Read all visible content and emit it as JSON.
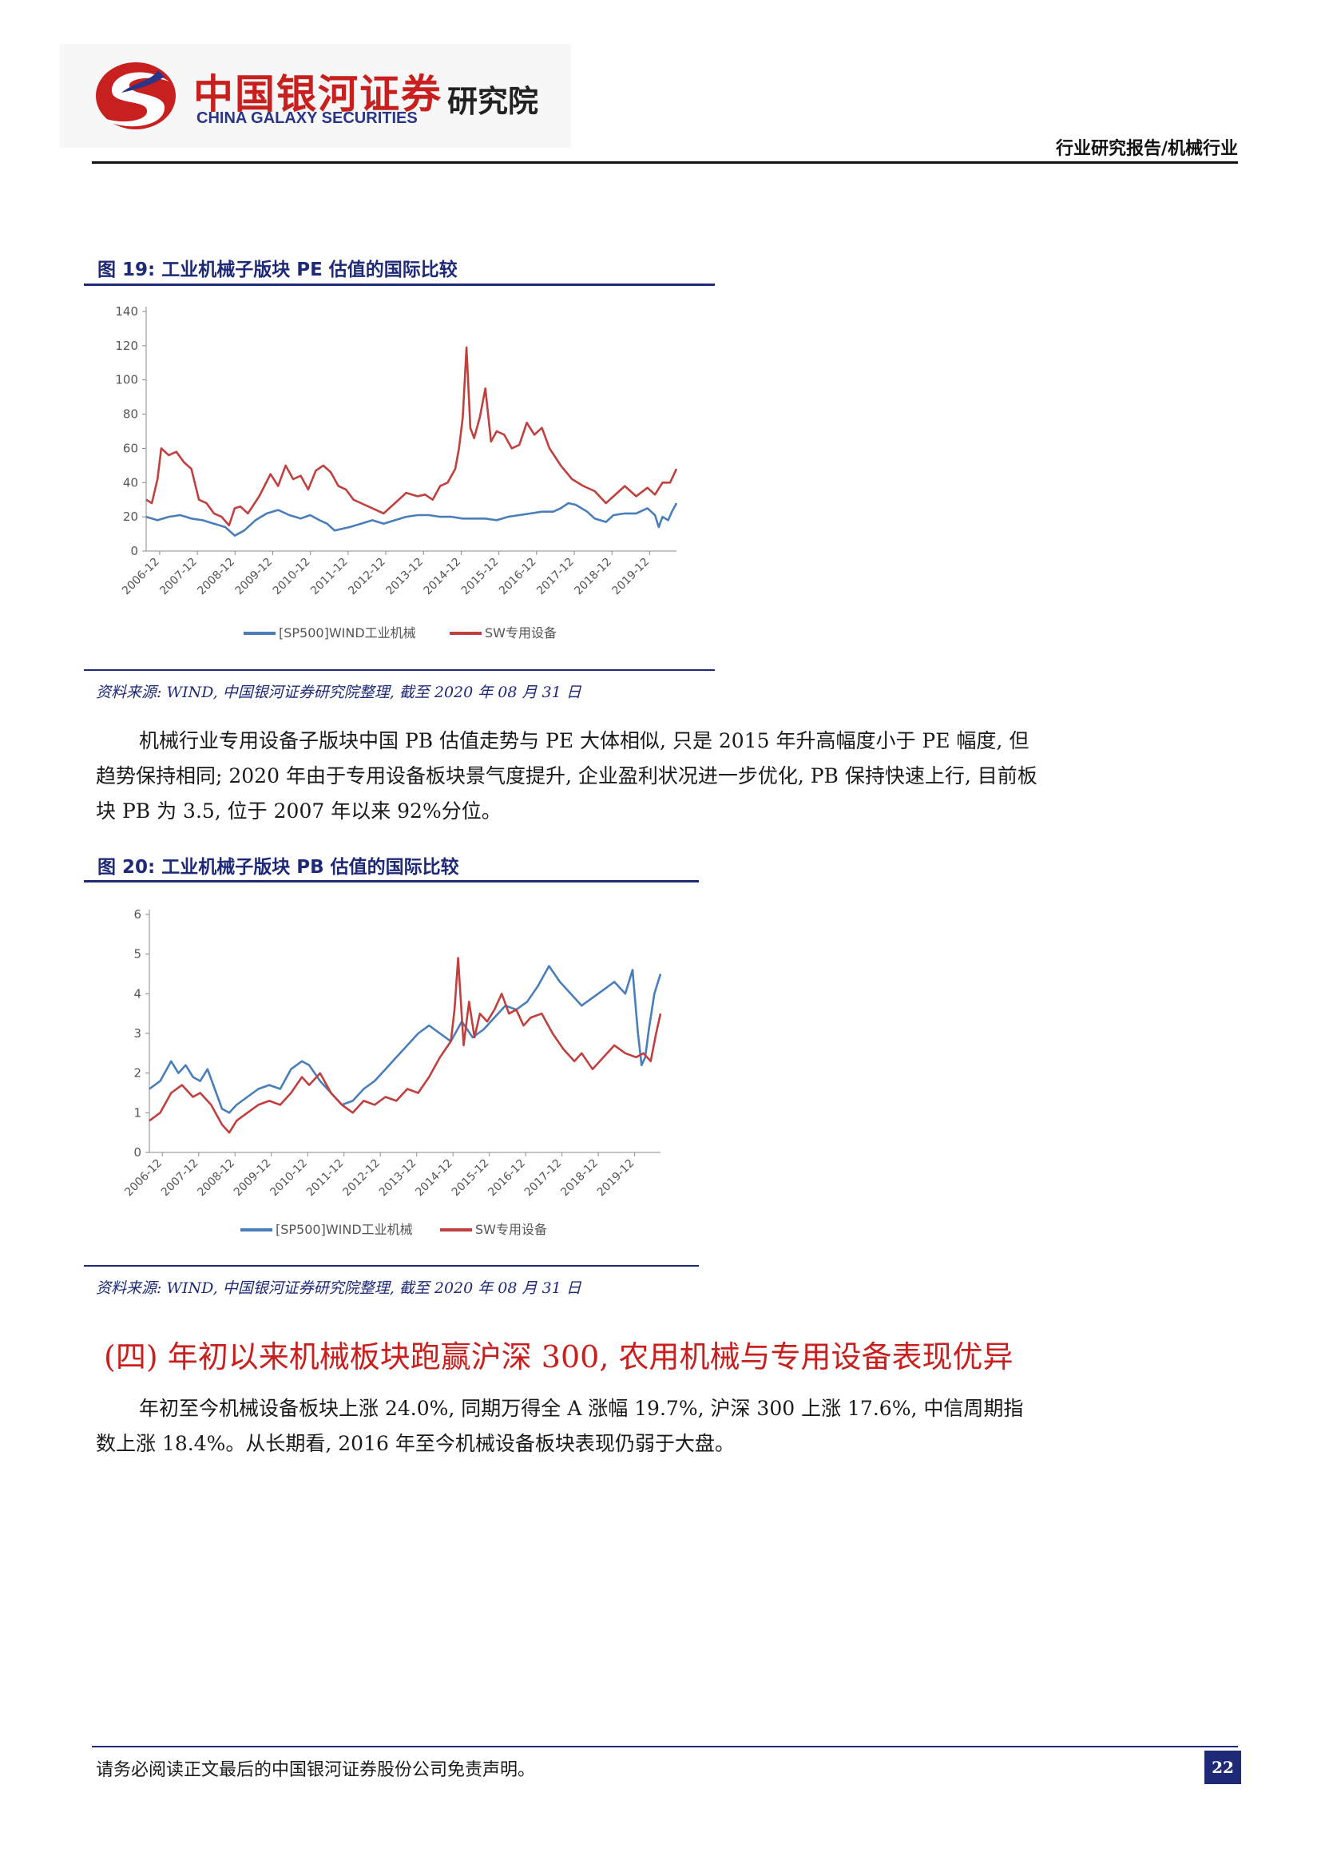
{
  "header": {
    "brand_cn": "中国银河证券",
    "brand_en": "CHINA GALAXY SECURITIES",
    "brand_dept": "研究院",
    "report_type": "行业研究报告/机械行业"
  },
  "figure19": {
    "title": "图 19:  工业机械子版块 PE 估值的国际比较",
    "source": "资料来源: WIND, 中国银河证券研究院整理, 截至 2020 年 08 月 31 日"
  },
  "paragraph1": "机械行业专用设备子版块中国 PB 估值走势与 PE 大体相似, 只是 2015 年升高幅度小于 PE 幅度, 但趋势保持相同; 2020 年由于专用设备板块景气度提升, 企业盈利状况进一步优化, PB 保持快速上行, 目前板块 PB 为 3.5, 位于 2007 年以来 92%分位。",
  "figure20": {
    "title": "图 20:  工业机械子版块 PB 估值的国际比较",
    "source": "资料来源: WIND, 中国银河证券研究院整理, 截至 2020 年 08 月 31 日"
  },
  "section_heading": "(四) 年初以来机械板块跑赢沪深 300, 农用机械与专用设备表现优异",
  "paragraph2": "年初至今机械设备板块上涨 24.0%, 同期万得全 A 涨幅 19.7%, 沪深 300 上涨 17.6%, 中信周期指数上涨 18.4%。从长期看, 2016 年至今机械设备板块表现仍弱于大盘。",
  "footer": {
    "disclaimer": "请务必阅读正文最后的中国银河证券股份公司免责声明。",
    "page_number": "22"
  },
  "colors": {
    "brand_red": "#c8201e",
    "brand_navy": "#1e2a78",
    "series_blue": "#4a7ebb",
    "series_red": "#c0403f"
  },
  "chart_data": [
    {
      "type": "line",
      "categories": [
        "2006-12",
        "2007-12",
        "2008-12",
        "2009-12",
        "2010-12",
        "2011-12",
        "2012-12",
        "2013-12",
        "2014-12",
        "2015-12",
        "2016-12",
        "2017-12",
        "2018-12",
        "2019-12"
      ],
      "ylim": [
        0,
        140
      ],
      "yticks": [
        0,
        20,
        40,
        60,
        80,
        100,
        120,
        140
      ],
      "x_start": 2006.6,
      "x_end": 2020.67,
      "series": [
        {
          "name": "[SP500]WIND工业机械",
          "color": "#4a7ebb",
          "x": [
            2006.6,
            2006.9,
            2007.2,
            2007.5,
            2007.8,
            2008.1,
            2008.4,
            2008.7,
            2008.95,
            2009.2,
            2009.5,
            2009.8,
            2010.1,
            2010.4,
            2010.7,
            2010.95,
            2011.2,
            2011.4,
            2011.6,
            2011.8,
            2012.0,
            2012.3,
            2012.6,
            2012.9,
            2013.2,
            2013.5,
            2013.8,
            2014.1,
            2014.4,
            2014.7,
            2015.0,
            2015.3,
            2015.6,
            2015.9,
            2016.2,
            2016.5,
            2016.8,
            2017.1,
            2017.4,
            2017.6,
            2017.8,
            2018.0,
            2018.3,
            2018.5,
            2018.8,
            2019.0,
            2019.3,
            2019.6,
            2019.9,
            2020.1,
            2020.2,
            2020.3,
            2020.45,
            2020.55,
            2020.67
          ],
          "y": [
            20,
            18,
            20,
            21,
            19,
            18,
            16,
            14,
            9,
            12,
            18,
            22,
            24,
            21,
            19,
            21,
            18,
            16,
            12,
            13,
            14,
            16,
            18,
            16,
            18,
            20,
            21,
            21,
            20,
            20,
            19,
            19,
            19,
            18,
            20,
            21,
            22,
            23,
            23,
            25,
            28,
            27,
            23,
            19,
            17,
            21,
            22,
            22,
            25,
            21,
            14,
            20,
            18,
            23,
            28
          ]
        },
        {
          "name": "SW专用设备",
          "color": "#c0403f",
          "x": [
            2006.6,
            2006.75,
            2006.9,
            2007.0,
            2007.2,
            2007.4,
            2007.6,
            2007.8,
            2008.0,
            2008.2,
            2008.4,
            2008.6,
            2008.8,
            2008.95,
            2009.1,
            2009.3,
            2009.6,
            2009.9,
            2010.1,
            2010.3,
            2010.5,
            2010.7,
            2010.9,
            2011.1,
            2011.3,
            2011.5,
            2011.7,
            2011.9,
            2012.1,
            2012.3,
            2012.6,
            2012.9,
            2013.2,
            2013.5,
            2013.8,
            2014.0,
            2014.2,
            2014.4,
            2014.6,
            2014.8,
            2014.9,
            2015.0,
            2015.1,
            2015.2,
            2015.3,
            2015.45,
            2015.6,
            2015.75,
            2015.9,
            2016.1,
            2016.3,
            2016.5,
            2016.7,
            2016.9,
            2017.1,
            2017.3,
            2017.6,
            2017.9,
            2018.2,
            2018.5,
            2018.8,
            2019.0,
            2019.3,
            2019.6,
            2019.9,
            2020.1,
            2020.3,
            2020.5,
            2020.67
          ],
          "y": [
            30,
            28,
            42,
            60,
            56,
            58,
            52,
            48,
            30,
            28,
            22,
            20,
            15,
            25,
            26,
            22,
            32,
            45,
            38,
            50,
            42,
            44,
            36,
            47,
            50,
            46,
            38,
            36,
            30,
            28,
            25,
            22,
            28,
            34,
            32,
            33,
            30,
            38,
            40,
            48,
            60,
            78,
            119,
            72,
            66,
            78,
            95,
            64,
            70,
            68,
            60,
            62,
            75,
            68,
            72,
            60,
            50,
            42,
            38,
            35,
            28,
            32,
            38,
            32,
            37,
            33,
            40,
            40,
            48
          ]
        }
      ]
    },
    {
      "type": "line",
      "categories": [
        "2006-12",
        "2007-12",
        "2008-12",
        "2009-12",
        "2010-12",
        "2011-12",
        "2012-12",
        "2013-12",
        "2014-12",
        "2015-12",
        "2016-12",
        "2017-12",
        "2018-12",
        "2019-12"
      ],
      "ylim": [
        0,
        6
      ],
      "yticks": [
        0,
        1,
        2,
        3,
        4,
        5,
        6
      ],
      "x_start": 2006.6,
      "x_end": 2020.67,
      "series": [
        {
          "name": "[SP500]WIND工业机械",
          "color": "#4a7ebb",
          "x": [
            2006.6,
            2006.9,
            2007.2,
            2007.4,
            2007.6,
            2007.8,
            2008.0,
            2008.2,
            2008.4,
            2008.6,
            2008.8,
            2009.0,
            2009.3,
            2009.6,
            2009.9,
            2010.2,
            2010.5,
            2010.8,
            2011.0,
            2011.3,
            2011.6,
            2011.9,
            2012.2,
            2012.5,
            2012.8,
            2013.1,
            2013.4,
            2013.7,
            2014.0,
            2014.3,
            2014.6,
            2014.9,
            2015.2,
            2015.5,
            2015.8,
            2016.1,
            2016.4,
            2016.7,
            2017.0,
            2017.3,
            2017.6,
            2017.9,
            2018.2,
            2018.5,
            2018.8,
            2019.1,
            2019.4,
            2019.7,
            2019.9,
            2020.05,
            2020.15,
            2020.25,
            2020.35,
            2020.5,
            2020.67
          ],
          "y": [
            1.6,
            1.8,
            2.3,
            2.0,
            2.2,
            1.9,
            1.8,
            2.1,
            1.6,
            1.1,
            1.0,
            1.2,
            1.4,
            1.6,
            1.7,
            1.6,
            2.1,
            2.3,
            2.2,
            1.8,
            1.5,
            1.2,
            1.3,
            1.6,
            1.8,
            2.1,
            2.4,
            2.7,
            3.0,
            3.2,
            3.0,
            2.8,
            3.3,
            2.9,
            3.1,
            3.4,
            3.7,
            3.6,
            3.8,
            4.2,
            4.7,
            4.3,
            4.0,
            3.7,
            3.9,
            4.1,
            4.3,
            4.0,
            4.6,
            3.0,
            2.2,
            2.4,
            3.1,
            4.0,
            4.5
          ]
        },
        {
          "name": "SW专用设备",
          "color": "#c0403f",
          "x": [
            2006.6,
            2006.9,
            2007.2,
            2007.5,
            2007.8,
            2008.0,
            2008.3,
            2008.6,
            2008.8,
            2009.0,
            2009.3,
            2009.6,
            2009.9,
            2010.2,
            2010.5,
            2010.8,
            2011.0,
            2011.3,
            2011.6,
            2011.9,
            2012.2,
            2012.5,
            2012.8,
            2013.1,
            2013.4,
            2013.7,
            2014.0,
            2014.3,
            2014.6,
            2014.9,
            2015.0,
            2015.1,
            2015.25,
            2015.4,
            2015.55,
            2015.7,
            2015.9,
            2016.1,
            2016.3,
            2016.5,
            2016.7,
            2016.9,
            2017.1,
            2017.4,
            2017.7,
            2018.0,
            2018.3,
            2018.5,
            2018.8,
            2019.1,
            2019.4,
            2019.7,
            2020.0,
            2020.2,
            2020.4,
            2020.55,
            2020.67
          ],
          "y": [
            0.8,
            1.0,
            1.5,
            1.7,
            1.4,
            1.5,
            1.2,
            0.7,
            0.5,
            0.8,
            1.0,
            1.2,
            1.3,
            1.2,
            1.5,
            1.9,
            1.7,
            2.0,
            1.5,
            1.2,
            1.0,
            1.3,
            1.2,
            1.4,
            1.3,
            1.6,
            1.5,
            1.9,
            2.4,
            2.8,
            3.6,
            4.9,
            2.7,
            3.8,
            2.9,
            3.5,
            3.3,
            3.6,
            4.0,
            3.5,
            3.6,
            3.2,
            3.4,
            3.5,
            3.0,
            2.6,
            2.3,
            2.5,
            2.1,
            2.4,
            2.7,
            2.5,
            2.4,
            2.5,
            2.3,
            3.0,
            3.5
          ]
        }
      ]
    }
  ]
}
